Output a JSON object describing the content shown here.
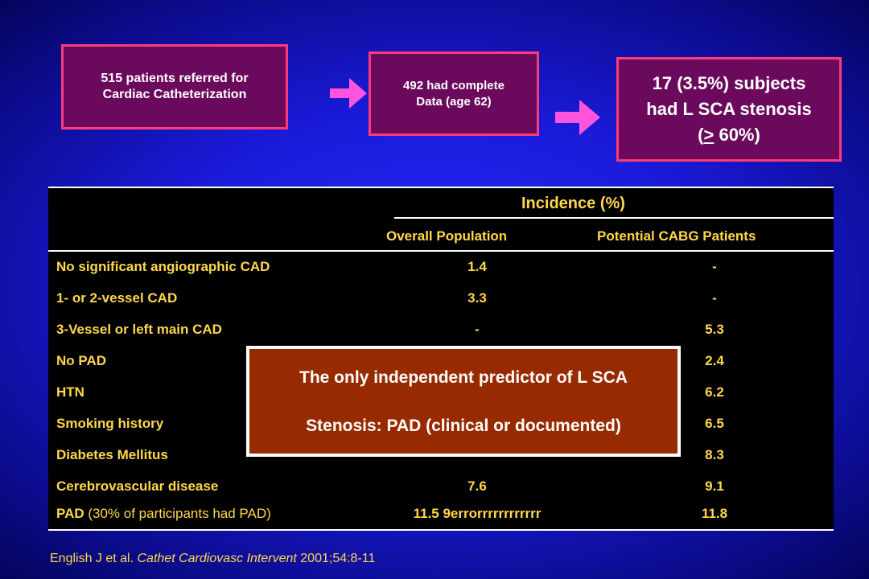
{
  "flow": {
    "box1": "515 patients referred for\nCardiac Catheterization",
    "box2": "492 had complete\nData (age 62)",
    "box3_line1": "17 (3.5%) subjects",
    "box3_line2": "had L SCA  stenosis",
    "box3_open": "(",
    "box3_symbol": ">",
    "box3_rest": " 60%)",
    "arrow_color": "#ff55dd",
    "box_fill": "#6b0a5c",
    "box_border": "#ff3a7a"
  },
  "table": {
    "group_header": "Incidence (%)",
    "col_overall": "Overall Population",
    "col_cabg": "Potential CABG Patients",
    "text_color": "#ffd84a",
    "rows": [
      {
        "label": "No significant angiographic CAD",
        "label_note": "",
        "overall": "1.4",
        "cabg": "-"
      },
      {
        "label": "1- or 2-vessel CAD",
        "label_note": "",
        "overall": "3.3",
        "cabg": "-"
      },
      {
        "label": "3-Vessel or left main CAD",
        "label_note": "",
        "overall": "-",
        "cabg": "5.3"
      },
      {
        "label": "No PAD",
        "label_note": "",
        "overall": "",
        "cabg": "2.4"
      },
      {
        "label": "HTN",
        "label_note": "",
        "overall": "",
        "cabg": "6.2"
      },
      {
        "label": "Smoking history",
        "label_note": "",
        "overall": "",
        "cabg": "6.5"
      },
      {
        "label": "Diabetes Mellitus",
        "label_note": "",
        "overall": "",
        "cabg": "8.3"
      },
      {
        "label": "Cerebrovascular disease",
        "label_note": "",
        "overall": "7.6",
        "cabg": "9.1"
      },
      {
        "label": "PAD",
        "label_note": " (30% of participants had PAD)",
        "overall": "11.5 9errorrrrrrrrrrrr",
        "cabg": "11.8"
      }
    ]
  },
  "callout": {
    "line1": "The only independent predictor of L SCA",
    "line2": "Stenosis: PAD (clinical or documented)",
    "fill": "#982a00"
  },
  "citation": {
    "authors": "English J et al. ",
    "journal": "Cathet Cardiovasc Intervent",
    "ref": " 2001;54:8-11"
  }
}
